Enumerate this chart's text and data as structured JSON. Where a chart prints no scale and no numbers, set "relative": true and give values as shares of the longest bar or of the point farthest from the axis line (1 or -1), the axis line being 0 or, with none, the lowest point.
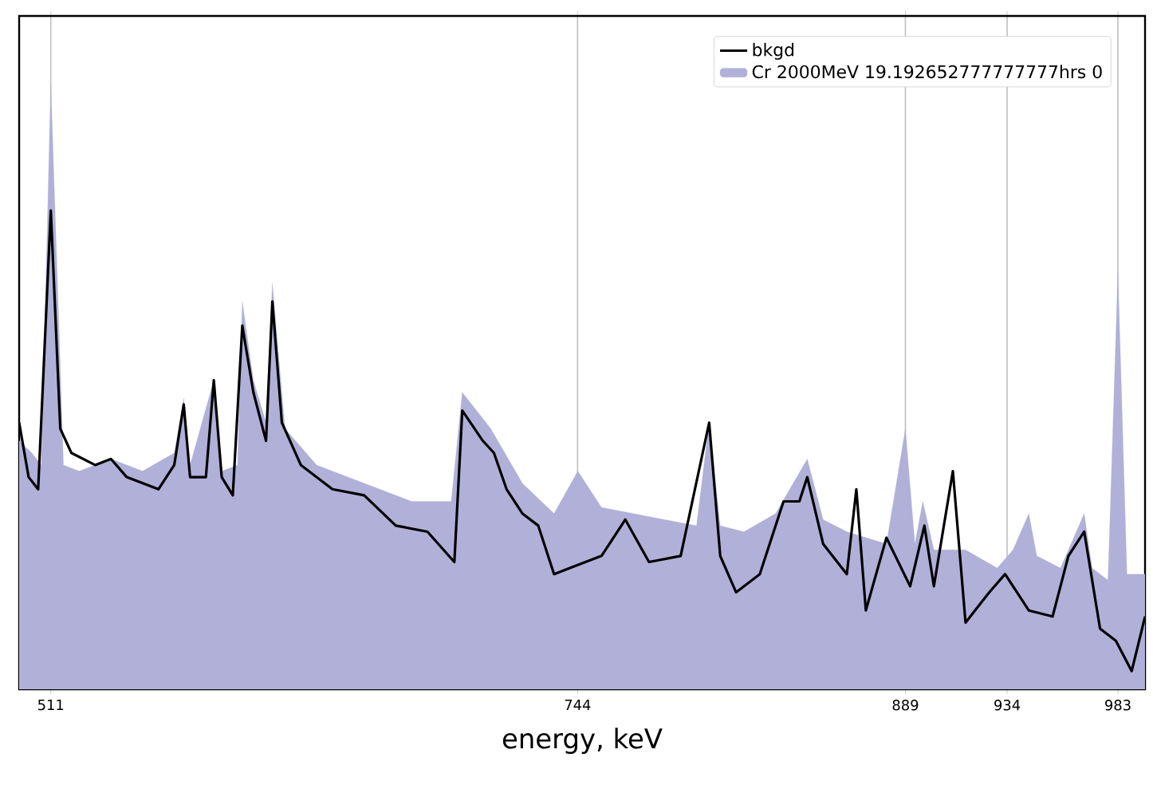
{
  "chart_data": {
    "type": "area",
    "xlabel": "energy, keV",
    "relative": true,
    "grid": "x",
    "legend": "top right",
    "xlim": [
      497,
      995
    ],
    "xticks": [
      511,
      744,
      889,
      934,
      983
    ],
    "series": [
      {
        "name": "bkgd",
        "type": "line",
        "color": "#000000",
        "x": [
          497,
          501.2,
          505.4,
          511,
          515.2,
          520.1,
          530.6,
          537.6,
          544.6,
          558.6,
          565.6,
          569.8,
          572.6,
          579.6,
          583.1,
          586.6,
          591.5,
          595.7,
          600.6,
          606.2,
          609,
          613.2,
          621.6,
          635.6,
          649.6,
          663.6,
          677.6,
          689.5,
          693,
          702.1,
          707,
          712.6,
          719.6,
          726.6,
          733.6,
          740.6,
          754.6,
          765.1,
          775.6,
          789.6,
          802.2,
          807.1,
          814.1,
          824.6,
          835.1,
          842.1,
          845.6,
          852.6,
          863.1,
          867.3,
          871.5,
          880.6,
          891.1,
          897.4,
          901.6,
          910,
          915.6,
          926.1,
          933.1,
          943.6,
          954.1,
          961.1,
          968.1,
          975.1,
          982.1,
          989.1,
          995
        ],
        "values": [
          0.44,
          0.35,
          0.33,
          0.79,
          0.43,
          0.39,
          0.37,
          0.38,
          0.35,
          0.33,
          0.37,
          0.47,
          0.35,
          0.35,
          0.51,
          0.35,
          0.32,
          0.6,
          0.49,
          0.41,
          0.64,
          0.44,
          0.37,
          0.33,
          0.32,
          0.27,
          0.26,
          0.21,
          0.46,
          0.41,
          0.39,
          0.33,
          0.29,
          0.27,
          0.19,
          0.2,
          0.22,
          0.28,
          0.21,
          0.22,
          0.44,
          0.22,
          0.16,
          0.19,
          0.31,
          0.31,
          0.35,
          0.24,
          0.19,
          0.33,
          0.13,
          0.25,
          0.17,
          0.27,
          0.17,
          0.36,
          0.11,
          0.16,
          0.19,
          0.13,
          0.12,
          0.22,
          0.26,
          0.1,
          0.08,
          0.03,
          0.12
        ]
      },
      {
        "name": "Cr 2000MeV 19.192652777777777hrs 0",
        "color": "#b0b0d8",
        "x": [
          497,
          502.6,
          506.8,
          511,
          514.5,
          516.6,
          523.6,
          537.6,
          551.6,
          565.6,
          569.8,
          572.6,
          583.1,
          586.6,
          593.6,
          595.7,
          600.6,
          606.2,
          609,
          614.6,
          628.6,
          649.6,
          670.6,
          688.1,
          693,
          705.6,
          719.6,
          733.6,
          744.1,
          754.6,
          768.6,
          782.6,
          796.6,
          802.2,
          807.1,
          817.6,
          831.6,
          845.6,
          852.6,
          863.1,
          880.6,
          889,
          893.2,
          896.7,
          901.6,
          915.6,
          929.6,
          936.6,
          943.6,
          947.1,
          957.6,
          968.1,
          971.6,
          978.6,
          983,
          987,
          995
        ],
        "values": [
          0.41,
          0.39,
          0.37,
          1.0,
          0.61,
          0.37,
          0.36,
          0.38,
          0.36,
          0.39,
          0.48,
          0.37,
          0.51,
          0.36,
          0.37,
          0.64,
          0.51,
          0.44,
          0.67,
          0.43,
          0.37,
          0.34,
          0.31,
          0.31,
          0.49,
          0.43,
          0.34,
          0.29,
          0.36,
          0.3,
          0.29,
          0.28,
          0.27,
          0.44,
          0.27,
          0.26,
          0.29,
          0.38,
          0.28,
          0.26,
          0.24,
          0.43,
          0.24,
          0.31,
          0.23,
          0.23,
          0.2,
          0.23,
          0.29,
          0.22,
          0.2,
          0.29,
          0.2,
          0.18,
          0.69,
          0.19,
          0.19
        ]
      }
    ]
  }
}
